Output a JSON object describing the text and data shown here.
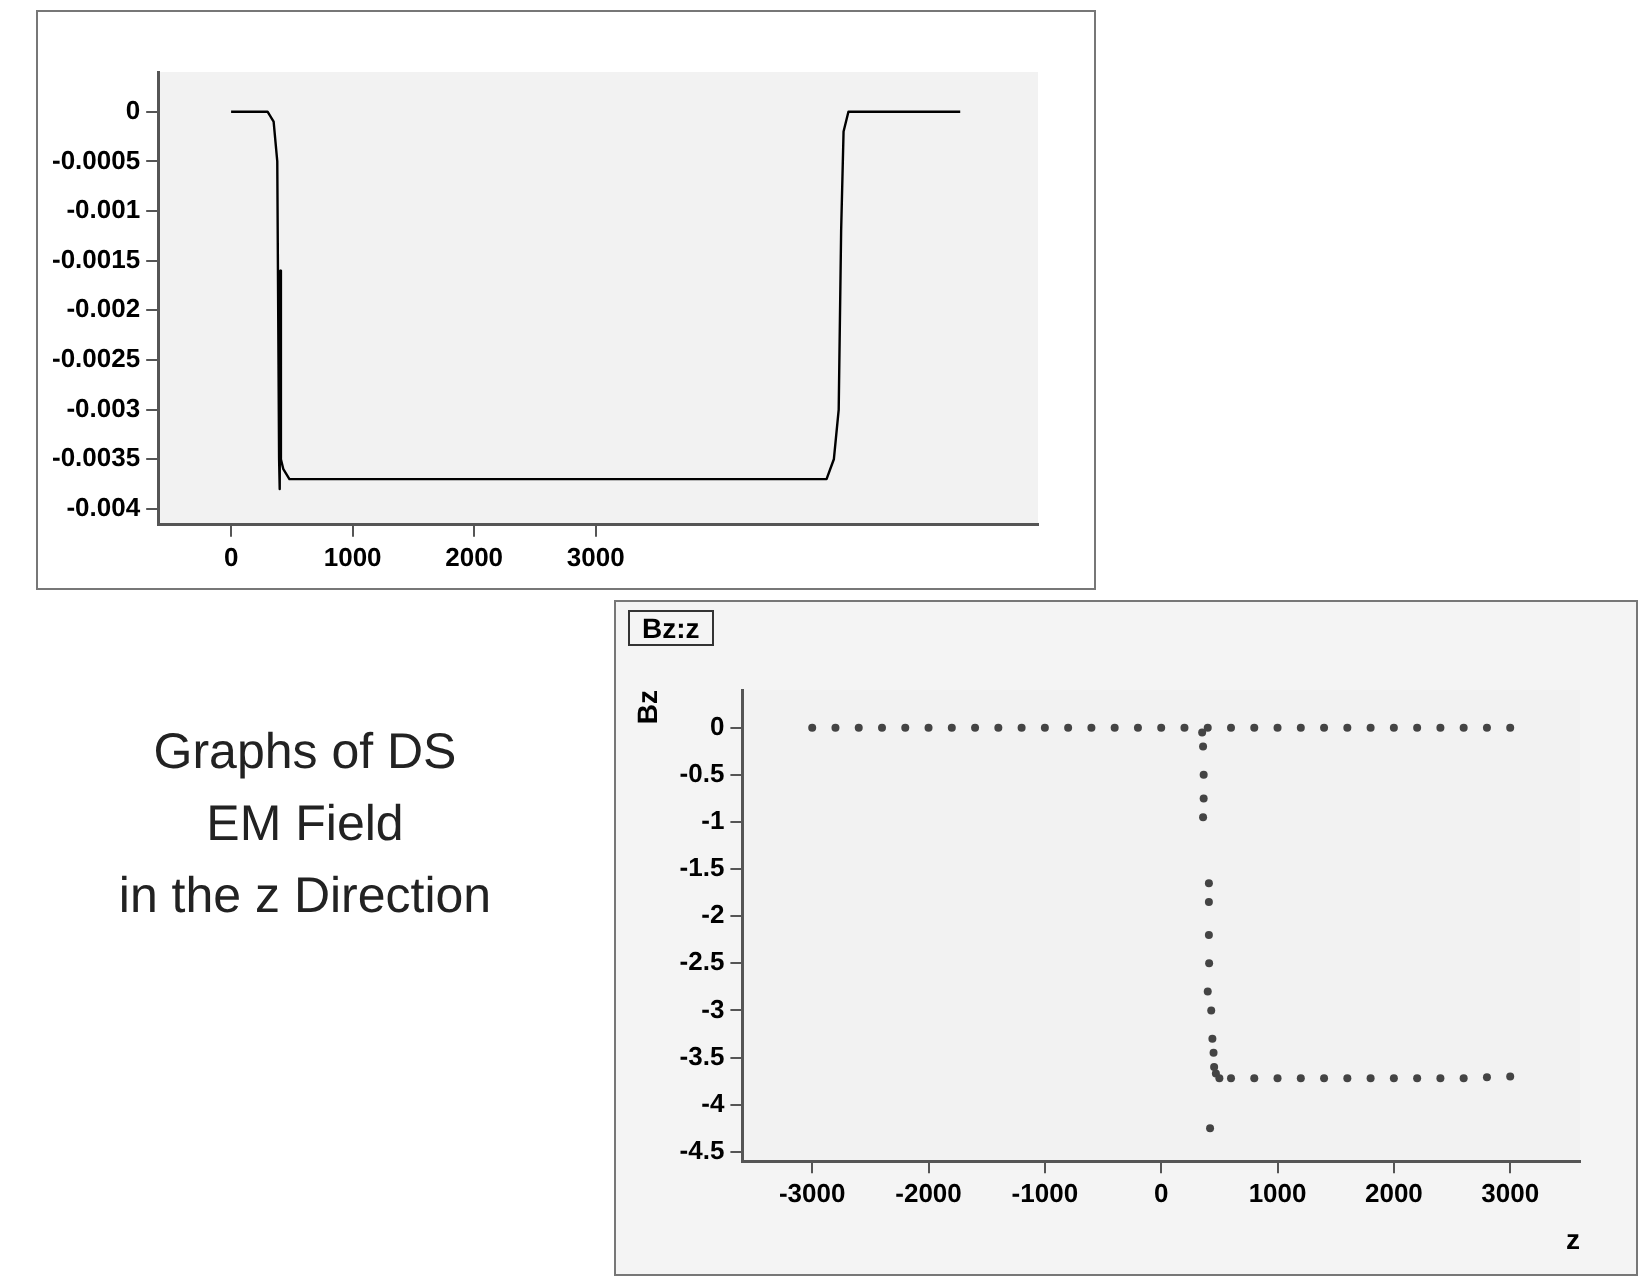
{
  "chart_data": [
    {
      "type": "line",
      "xlim": [
        -600,
        6640
      ],
      "ylim": [
        -0.00416,
        0.0004
      ],
      "xticks": [
        0,
        1000,
        2000,
        3000
      ],
      "yticks": [
        0,
        -0.0005,
        -0.001,
        -0.0015,
        -0.002,
        -0.0025,
        -0.003,
        -0.0035,
        -0.004
      ],
      "grid": false,
      "series": [
        {
          "color": "#000000",
          "x": [
            0,
            300,
            350,
            380,
            395,
            400,
            405,
            410,
            430,
            480,
            600,
            1500,
            3000,
            4900,
            4960,
            5000,
            5020,
            5040,
            5080,
            5200,
            6000
          ],
          "values": [
            0,
            0,
            -0.0001,
            -0.0005,
            -0.0035,
            -0.0038,
            -0.0016,
            -0.0035,
            -0.0036,
            -0.0037,
            -0.0037,
            -0.0037,
            -0.0037,
            -0.0037,
            -0.0035,
            -0.003,
            -0.0012,
            -0.0002,
            0,
            0,
            0
          ]
        }
      ],
      "annotations": [
        "Graphs of DS",
        "EM Field",
        "in the z Direction"
      ]
    },
    {
      "type": "scatter",
      "title": "Bz:z",
      "xlabel": "z",
      "ylabel": "Bz",
      "xlim": [
        -3600,
        3600
      ],
      "ylim": [
        -4.6,
        0.4
      ],
      "xticks": [
        -3000,
        -2000,
        -1000,
        0,
        1000,
        2000,
        3000
      ],
      "yticks": [
        0,
        -0.5,
        -1,
        -1.5,
        -2,
        -2.5,
        -3,
        -3.5,
        -4,
        -4.5
      ],
      "grid": false,
      "marker": "circle",
      "series": [
        {
          "color": "#444444",
          "x": [
            -3000,
            -2800,
            -2600,
            -2400,
            -2200,
            -2000,
            -1800,
            -1600,
            -1400,
            -1200,
            -1000,
            -800,
            -600,
            -400,
            -200,
            0,
            200,
            400,
            600,
            800,
            1000,
            1200,
            1400,
            1600,
            1800,
            2000,
            2200,
            2400,
            2600,
            2800,
            3000,
            352,
            360,
            365,
            365,
            360,
            410,
            410,
            410,
            412,
            400,
            430,
            440,
            450,
            455,
            470,
            420,
            500,
            600,
            800,
            1000,
            1200,
            1400,
            1600,
            1800,
            2000,
            2200,
            2400,
            2600,
            2800,
            3000
          ],
          "values": [
            0,
            0,
            0,
            0,
            0,
            0,
            0,
            0,
            0,
            0,
            0,
            0,
            0,
            0,
            0,
            0,
            0,
            0,
            0,
            0,
            0,
            0,
            0,
            0,
            0,
            0,
            0,
            0,
            0,
            0,
            0,
            -0.05,
            -0.2,
            -0.5,
            -0.75,
            -0.95,
            -1.65,
            -1.85,
            -2.2,
            -2.5,
            -2.8,
            -3.0,
            -3.3,
            -3.45,
            -3.6,
            -3.67,
            -4.25,
            -3.72,
            -3.72,
            -3.72,
            -3.72,
            -3.72,
            -3.72,
            -3.72,
            -3.72,
            -3.72,
            -3.72,
            -3.72,
            -3.72,
            -3.71,
            -3.7
          ]
        }
      ]
    }
  ]
}
